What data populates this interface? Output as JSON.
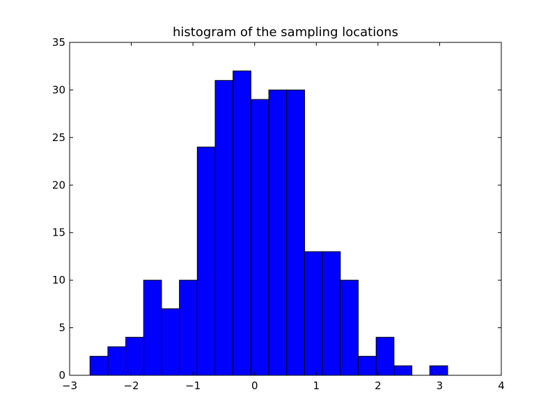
{
  "chart_data": {
    "type": "bar",
    "title": "histogram of the sampling locations",
    "xlabel": "",
    "ylabel": "",
    "xlim": [
      -3,
      4
    ],
    "ylim": [
      0,
      35
    ],
    "xticks": [
      "−3",
      "−2",
      "−1",
      "0",
      "1",
      "2",
      "3",
      "4"
    ],
    "yticks": [
      "0",
      "5",
      "10",
      "15",
      "20",
      "25",
      "30",
      "35"
    ],
    "bar_color": "#0000ff",
    "bin_edges": [
      -2.67,
      -2.38,
      -2.09,
      -1.8,
      -1.51,
      -1.22,
      -0.93,
      -0.64,
      -0.35,
      -0.06,
      0.23,
      0.52,
      0.81,
      1.1,
      1.39,
      1.68,
      1.97,
      2.26,
      2.55,
      2.84,
      3.13
    ],
    "values": [
      2,
      3,
      4,
      10,
      7,
      10,
      24,
      31,
      32,
      29,
      30,
      30,
      13,
      13,
      10,
      2,
      4,
      1,
      0,
      1
    ],
    "grid": false,
    "legend": ""
  }
}
